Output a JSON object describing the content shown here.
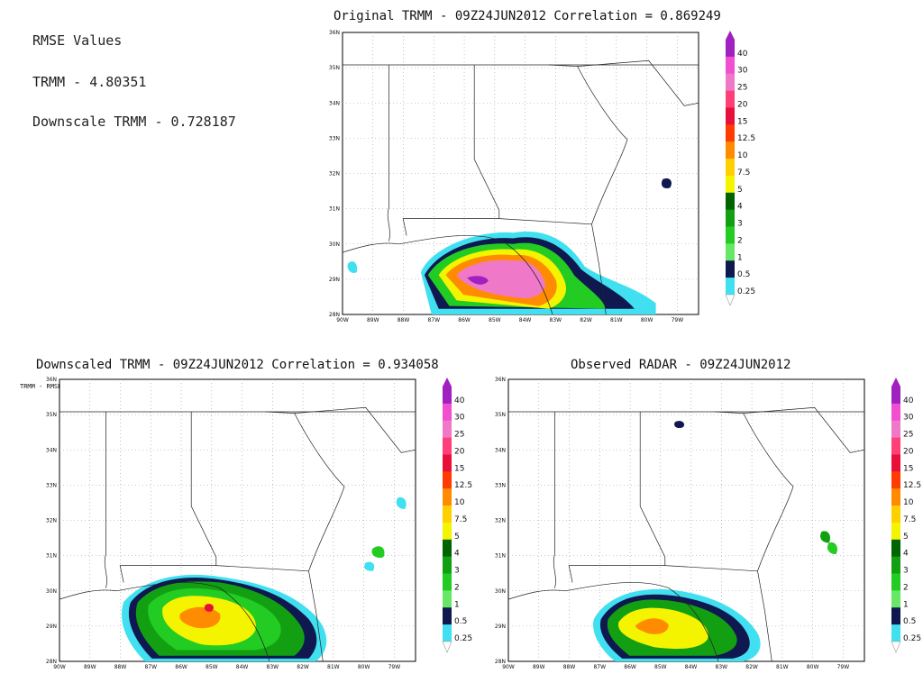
{
  "rmse": {
    "heading": "RMSE Values",
    "trmm_line": "TRMM  -  4.80351",
    "downscale_line": "Downscale TRMM  -  0.728187"
  },
  "stamp": "TRMM - RMSE_",
  "panels": [
    {
      "id": "original",
      "title": "Original TRMM  -  09Z24JUN2012  Correlation = 0.869249"
    },
    {
      "id": "downscaled",
      "title": "Downscaled TRMM  -  09Z24JUN2012  Correlation = 0.934058"
    },
    {
      "id": "radar",
      "title": "Observed RADAR  -  09Z24JUN2012"
    }
  ],
  "lat_labels": [
    "36N",
    "35N",
    "34N",
    "33N",
    "32N",
    "31N",
    "30N",
    "29N",
    "28N"
  ],
  "lon_labels": [
    "90W",
    "89W",
    "88W",
    "87W",
    "86W",
    "85W",
    "84W",
    "83W",
    "82W",
    "81W",
    "80W",
    "79W"
  ],
  "colorbar": {
    "levels": [
      "40",
      "30",
      "25",
      "20",
      "15",
      "12.5",
      "10",
      "7.5",
      "5",
      "4",
      "3",
      "2",
      "1",
      "0.5",
      "0.25"
    ],
    "colors": [
      "#a020c0",
      "#f050d0",
      "#f078c8",
      "#ff4078",
      "#e8103a",
      "#ff3c00",
      "#ff8c00",
      "#ffd000",
      "#f4f400",
      "#006400",
      "#12a012",
      "#22cc22",
      "#66e866",
      "#101850",
      "#40e0f0"
    ]
  }
}
